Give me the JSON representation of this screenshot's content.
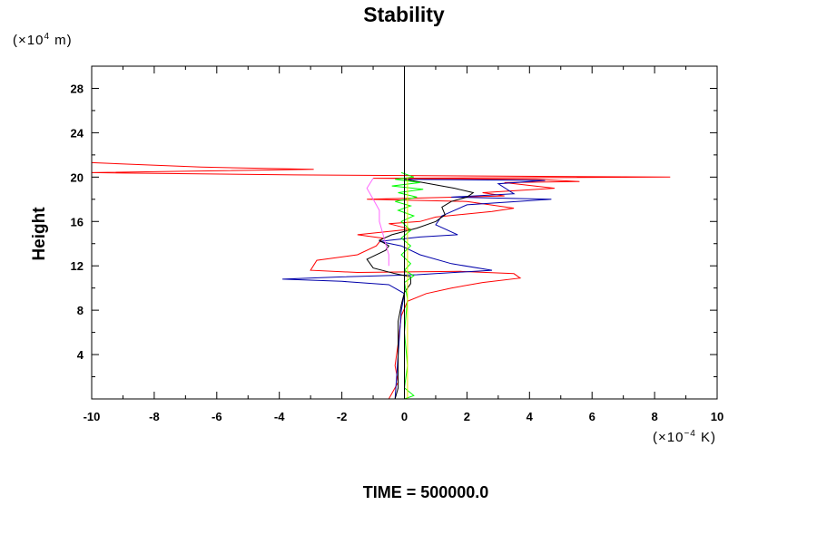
{
  "chart_data": {
    "type": "line",
    "title": "Stability",
    "ylabel": "Height",
    "y_unit": {
      "prefix": "(×10",
      "exp": "4",
      "suffix": " m)"
    },
    "x_unit": {
      "prefix": "(×10",
      "exp": "−4",
      "suffix": " K)"
    },
    "footer": "TIME = 500000.0",
    "xlim": [
      -10,
      10
    ],
    "ylim": [
      0,
      30
    ],
    "xticks": [
      -10,
      -8,
      -6,
      -4,
      -2,
      0,
      2,
      4,
      6,
      8,
      10
    ],
    "yticks": [
      4,
      8,
      12,
      16,
      20,
      24,
      28
    ],
    "grid": false,
    "legend": "none",
    "series": [
      {
        "color": "#ff0000",
        "points": [
          [
            -10,
            21.3
          ],
          [
            -6.5,
            20.9
          ],
          [
            -2.9,
            20.7
          ],
          [
            -10,
            20.4
          ],
          [
            -3.5,
            20.2
          ],
          [
            8.5,
            20.0
          ],
          [
            -1.0,
            19.9
          ],
          [
            4.2,
            19.8
          ],
          [
            5.6,
            19.6
          ],
          [
            3.2,
            19.5
          ],
          [
            4.8,
            19.0
          ],
          [
            2.5,
            18.6
          ],
          [
            3.2,
            18.3
          ],
          [
            -1.2,
            18.0
          ],
          [
            2.0,
            17.8
          ],
          [
            3.5,
            17.2
          ],
          [
            2.8,
            16.9
          ],
          [
            1.0,
            16.4
          ],
          [
            0.5,
            16.0
          ],
          [
            -0.5,
            15.8
          ],
          [
            0.2,
            15.3
          ],
          [
            -1.5,
            14.8
          ],
          [
            -0.7,
            14.5
          ],
          [
            -0.9,
            13.8
          ],
          [
            -1.5,
            13.0
          ],
          [
            -2.8,
            12.5
          ],
          [
            -3.0,
            11.6
          ],
          [
            -1.5,
            11.4
          ],
          [
            1.8,
            11.5
          ],
          [
            3.5,
            11.3
          ],
          [
            3.7,
            10.9
          ],
          [
            2.5,
            10.5
          ],
          [
            1.5,
            10.0
          ],
          [
            0.7,
            9.5
          ],
          [
            0.1,
            8.8
          ],
          [
            -0.1,
            7.5
          ],
          [
            -0.2,
            5.0
          ],
          [
            -0.3,
            3.0
          ],
          [
            -0.2,
            1.5
          ],
          [
            -0.5,
            0.0
          ]
        ]
      },
      {
        "color": "#0000aa",
        "points": [
          [
            0.0,
            19.8
          ],
          [
            4.5,
            19.7
          ],
          [
            3.0,
            19.4
          ],
          [
            3.5,
            18.5
          ],
          [
            1.5,
            18.2
          ],
          [
            4.7,
            18.0
          ],
          [
            2.0,
            17.5
          ],
          [
            1.2,
            16.5
          ],
          [
            1.0,
            15.7
          ],
          [
            1.7,
            14.8
          ],
          [
            0.5,
            14.6
          ],
          [
            -0.8,
            14.2
          ],
          [
            -0.1,
            13.8
          ],
          [
            0.5,
            13.0
          ],
          [
            1.5,
            12.2
          ],
          [
            2.8,
            11.6
          ],
          [
            0.4,
            11.2
          ],
          [
            -2.0,
            11.0
          ],
          [
            -3.9,
            10.8
          ],
          [
            -2.0,
            10.6
          ],
          [
            -0.5,
            10.3
          ],
          [
            0.0,
            9.5
          ],
          [
            -0.1,
            8.0
          ],
          [
            -0.2,
            4.0
          ],
          [
            -0.3,
            0.0
          ]
        ]
      },
      {
        "color": "#000000",
        "points": [
          [
            0.0,
            19.8
          ],
          [
            0.6,
            19.5
          ],
          [
            1.6,
            19.0
          ],
          [
            2.2,
            18.6
          ],
          [
            2.0,
            18.2
          ],
          [
            1.5,
            17.8
          ],
          [
            1.2,
            17.3
          ],
          [
            1.3,
            16.6
          ],
          [
            1.0,
            16.0
          ],
          [
            0.4,
            15.4
          ],
          [
            -0.4,
            14.8
          ],
          [
            -0.8,
            14.3
          ],
          [
            -0.5,
            13.8
          ],
          [
            -0.6,
            13.4
          ],
          [
            -1.2,
            12.6
          ],
          [
            -1.0,
            11.8
          ],
          [
            -0.3,
            11.3
          ],
          [
            0.2,
            11.0
          ],
          [
            0.2,
            10.4
          ],
          [
            0.0,
            9.6
          ],
          [
            -0.1,
            8.5
          ],
          [
            -0.2,
            7.0
          ],
          [
            -0.2,
            4.0
          ],
          [
            -0.2,
            1.0
          ],
          [
            -0.3,
            0.0
          ]
        ]
      },
      {
        "color": "#ff66ff",
        "points": [
          [
            -1.0,
            19.9
          ],
          [
            -1.2,
            19.0
          ],
          [
            -1.0,
            18.0
          ],
          [
            -0.8,
            17.0
          ],
          [
            -0.8,
            16.0
          ],
          [
            -0.7,
            15.0
          ],
          [
            -0.6,
            14.0
          ],
          [
            -0.5,
            13.0
          ],
          [
            -0.5,
            12.0
          ]
        ]
      },
      {
        "color": "#00ff00",
        "points": [
          [
            -0.1,
            20.4
          ],
          [
            0.3,
            20.0
          ],
          [
            -0.3,
            19.8
          ],
          [
            0.5,
            19.5
          ],
          [
            -0.4,
            19.2
          ],
          [
            0.6,
            18.9
          ],
          [
            -0.2,
            18.6
          ],
          [
            0.4,
            18.2
          ],
          [
            -0.3,
            17.8
          ],
          [
            0.2,
            17.4
          ],
          [
            -0.2,
            17.0
          ],
          [
            0.3,
            16.5
          ],
          [
            -0.1,
            16.0
          ],
          [
            0.2,
            15.2
          ],
          [
            -0.1,
            14.5
          ],
          [
            0.2,
            13.8
          ],
          [
            -0.1,
            13.0
          ],
          [
            0.2,
            12.2
          ],
          [
            0.0,
            11.6
          ],
          [
            0.3,
            11.1
          ],
          [
            0.0,
            10.5
          ],
          [
            0.1,
            9.0
          ],
          [
            0.0,
            6.0
          ],
          [
            0.1,
            3.0
          ],
          [
            0.0,
            1.0
          ],
          [
            0.3,
            0.3
          ],
          [
            0.0,
            0.0
          ]
        ]
      },
      {
        "color": "#e6e600",
        "points": [
          [
            0.1,
            20.0
          ],
          [
            0.1,
            15.0
          ],
          [
            0.1,
            10.0
          ],
          [
            0.1,
            5.0
          ],
          [
            0.1,
            0.0
          ]
        ]
      }
    ]
  }
}
